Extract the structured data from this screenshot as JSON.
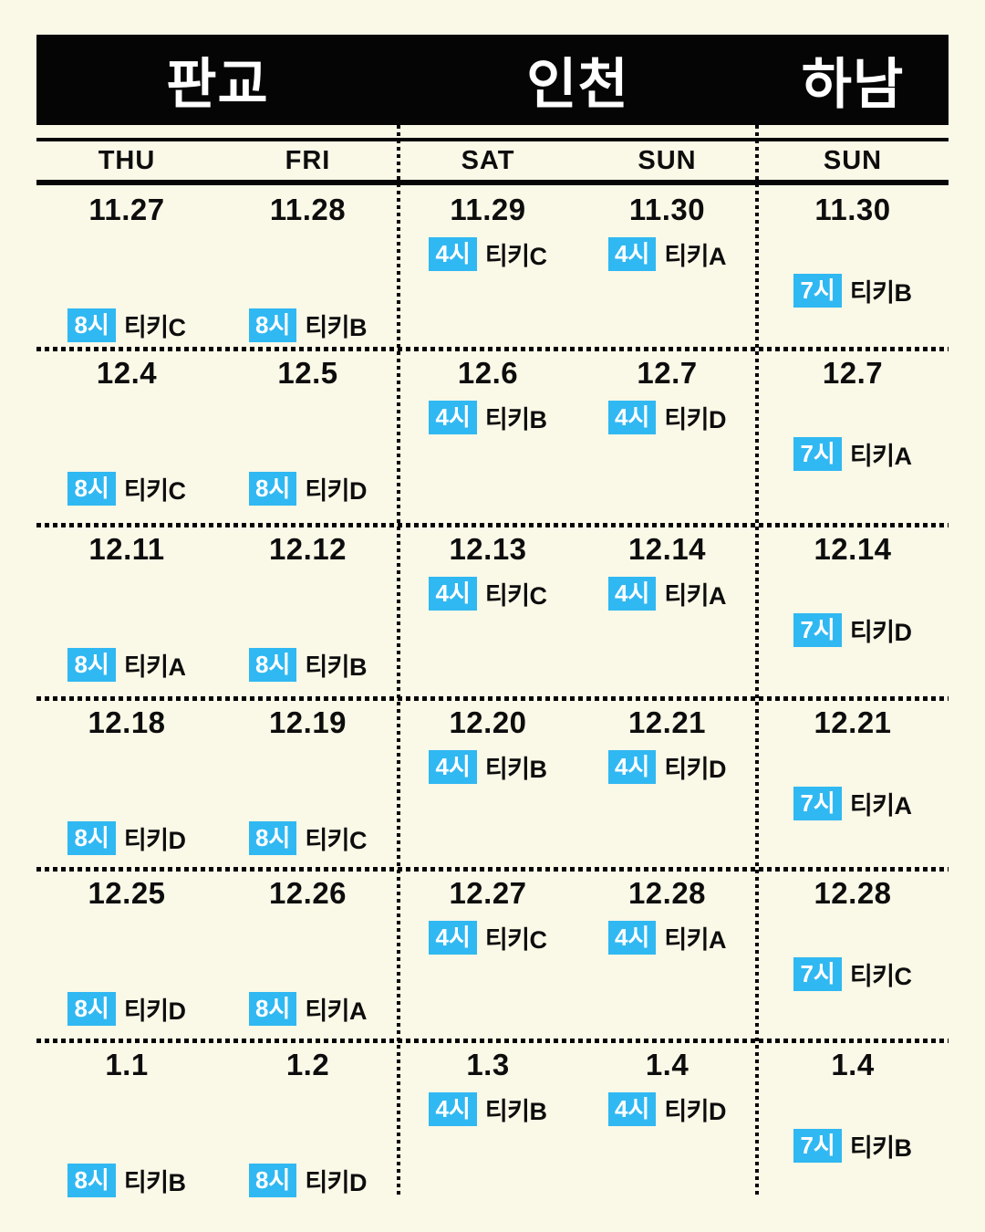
{
  "colors": {
    "background": "#faf8e7",
    "header_bar": "#050505",
    "badge": "#30b8f2",
    "badge_text": "#ffffff",
    "text": "#0d0d0d"
  },
  "venues": [
    {
      "label": "판교"
    },
    {
      "label": "인천"
    },
    {
      "label": "하남"
    }
  ],
  "day_headers": [
    "THU",
    "FRI",
    "SAT",
    "SUN",
    "SUN"
  ],
  "rows": [
    {
      "cells": [
        {
          "date": "11.27",
          "time": "8시",
          "label": "티키C"
        },
        {
          "date": "11.28",
          "time": "8시",
          "label": "티키B"
        },
        {
          "date": "11.29",
          "time": "4시",
          "label": "티키C"
        },
        {
          "date": "11.30",
          "time": "4시",
          "label": "티키A"
        },
        {
          "date": "11.30",
          "time": "7시",
          "label": "티키B"
        }
      ]
    },
    {
      "cells": [
        {
          "date": "12.4",
          "time": "8시",
          "label": "티키C"
        },
        {
          "date": "12.5",
          "time": "8시",
          "label": "티키D"
        },
        {
          "date": "12.6",
          "time": "4시",
          "label": "티키B"
        },
        {
          "date": "12.7",
          "time": "4시",
          "label": "티키D"
        },
        {
          "date": "12.7",
          "time": "7시",
          "label": "티키A"
        }
      ]
    },
    {
      "cells": [
        {
          "date": "12.11",
          "time": "8시",
          "label": "티키A"
        },
        {
          "date": "12.12",
          "time": "8시",
          "label": "티키B"
        },
        {
          "date": "12.13",
          "time": "4시",
          "label": "티키C"
        },
        {
          "date": "12.14",
          "time": "4시",
          "label": "티키A"
        },
        {
          "date": "12.14",
          "time": "7시",
          "label": "티키D"
        }
      ]
    },
    {
      "cells": [
        {
          "date": "12.18",
          "time": "8시",
          "label": "티키D"
        },
        {
          "date": "12.19",
          "time": "8시",
          "label": "티키C"
        },
        {
          "date": "12.20",
          "time": "4시",
          "label": "티키B"
        },
        {
          "date": "12.21",
          "time": "4시",
          "label": "티키D"
        },
        {
          "date": "12.21",
          "time": "7시",
          "label": "티키A"
        }
      ]
    },
    {
      "cells": [
        {
          "date": "12.25",
          "time": "8시",
          "label": "티키D"
        },
        {
          "date": "12.26",
          "time": "8시",
          "label": "티키A"
        },
        {
          "date": "12.27",
          "time": "4시",
          "label": "티키C"
        },
        {
          "date": "12.28",
          "time": "4시",
          "label": "티키A"
        },
        {
          "date": "12.28",
          "time": "7시",
          "label": "티키C"
        }
      ]
    },
    {
      "cells": [
        {
          "date": "1.1",
          "time": "8시",
          "label": "티키B"
        },
        {
          "date": "1.2",
          "time": "8시",
          "label": "티키D"
        },
        {
          "date": "1.3",
          "time": "4시",
          "label": "티키B"
        },
        {
          "date": "1.4",
          "time": "4시",
          "label": "티키D"
        },
        {
          "date": "1.4",
          "time": "7시",
          "label": "티키B"
        }
      ]
    }
  ]
}
